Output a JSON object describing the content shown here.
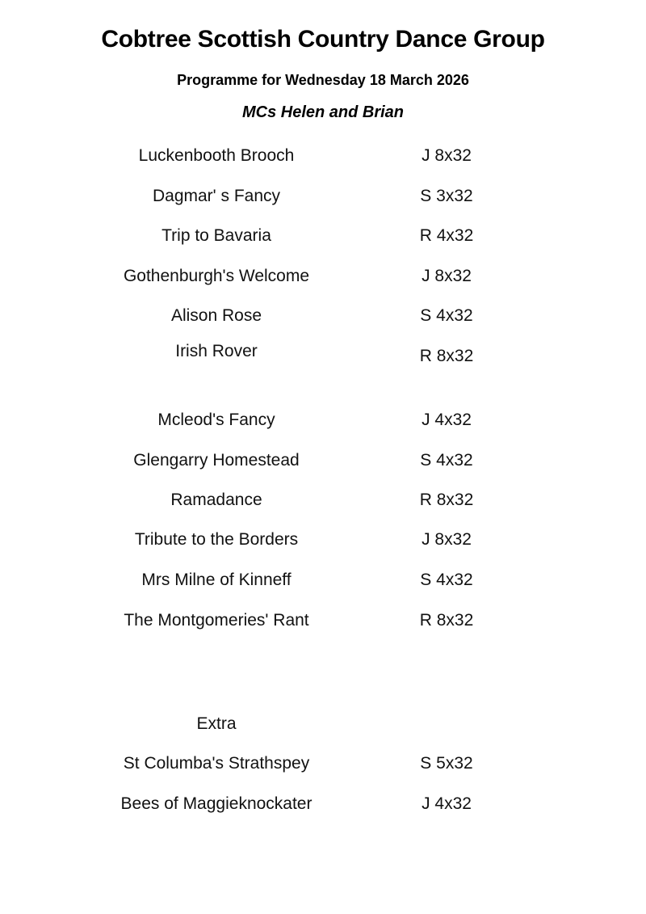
{
  "title": "Cobtree Scottish Country Dance Group",
  "subtitle": "Programme for Wednesday 18 March 2026",
  "mcs": "MCs Helen and Brian",
  "first_half": [
    {
      "name": "Luckenbooth Brooch",
      "type": "J 8x32"
    },
    {
      "name": "Dagmar' s Fancy",
      "type": "S 3x32"
    },
    {
      "name": "Trip to Bavaria",
      "type": "R 4x32"
    },
    {
      "name": "Gothenburgh's Welcome",
      "type": "J 8x32"
    },
    {
      "name": "Alison Rose",
      "type": "S 4x32"
    },
    {
      "name": "Irish Rover",
      "type": "R 8x32"
    }
  ],
  "second_half": [
    {
      "name": "Mcleod's Fancy",
      "type": "J 4x32"
    },
    {
      "name": "Glengarry Homestead",
      "type": "S 4x32"
    },
    {
      "name": "Ramadance",
      "type": "R 8x32"
    },
    {
      "name": "Tribute to the Borders",
      "type": "J 8x32"
    },
    {
      "name": "Mrs Milne of Kinneff",
      "type": "S 4x32"
    },
    {
      "name": "The Montgomeries' Rant",
      "type": "R 8x32"
    }
  ],
  "extra_label": "Extra",
  "extras": [
    {
      "name": "St Columba's Strathspey",
      "type": "S 5x32"
    },
    {
      "name": "Bees of Maggieknockater",
      "type": "J 4x32"
    }
  ]
}
